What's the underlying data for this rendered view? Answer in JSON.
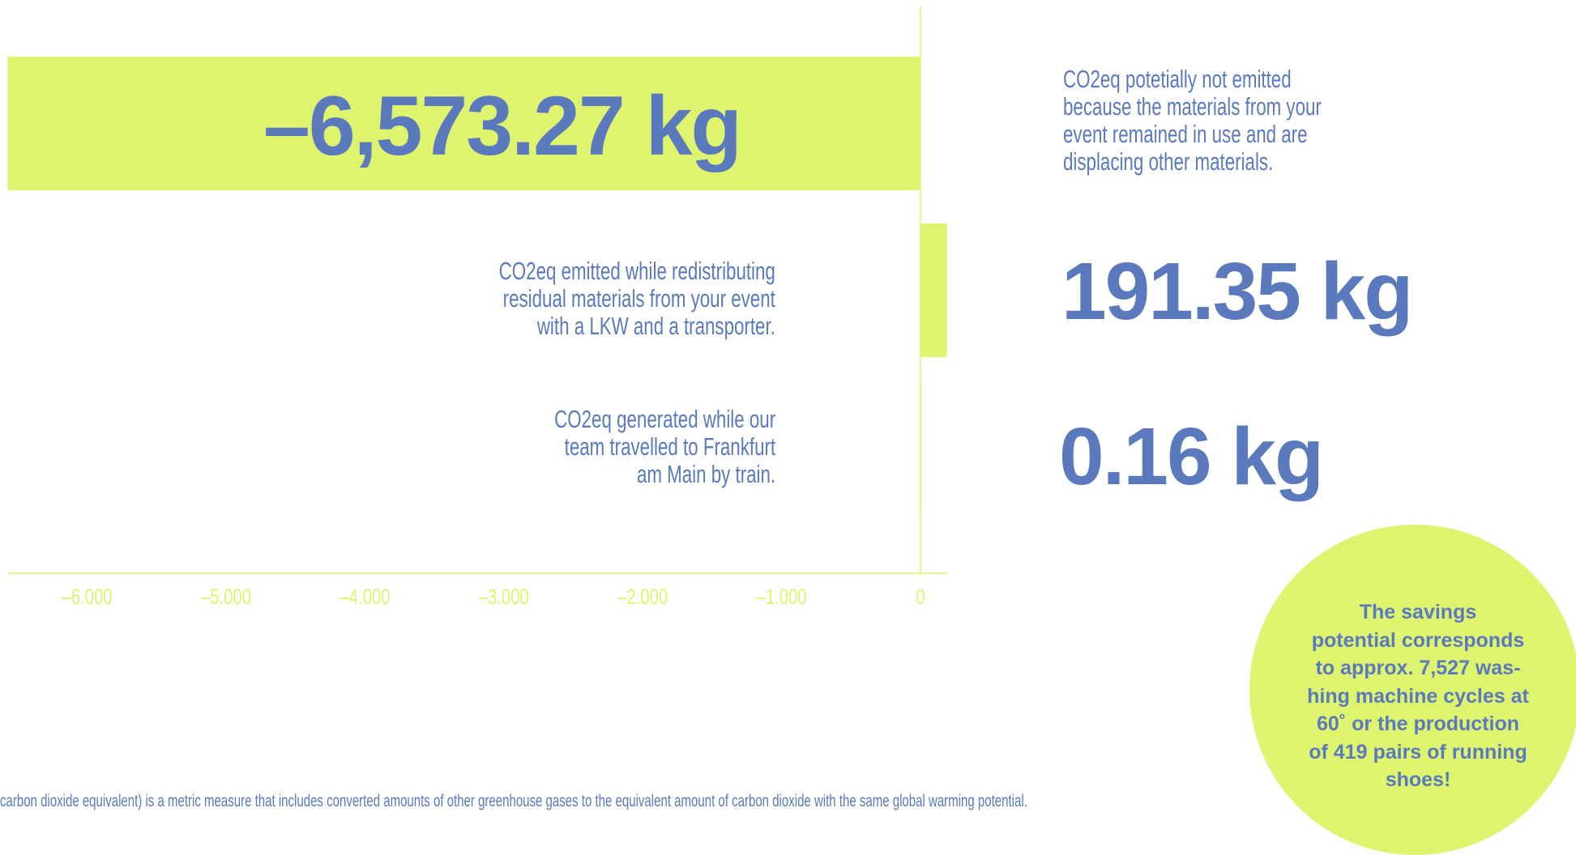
{
  "chart_data": {
    "type": "bar",
    "orientation": "horizontal",
    "series": [
      {
        "value": -6573.27,
        "value_label": "–6,573.27 kg",
        "description": [
          "CO2eq potetially not emitted",
          "because the materials from your",
          "event remained in use and are",
          "displacing other materials."
        ]
      },
      {
        "value": 191.35,
        "value_label": "191.35 kg",
        "description": [
          "CO2eq emitted while redistributing",
          "residual materials from your event",
          "with a LKW and a transporter."
        ]
      },
      {
        "value": 0.16,
        "value_label": "0.16 kg",
        "description": [
          "CO2eq generated while our",
          "team travelled to Frankfurt",
          "am Main by train."
        ]
      }
    ],
    "x_ticks": [
      -6000,
      -5000,
      -4000,
      -3000,
      -2000,
      -1000,
      0
    ],
    "x_tick_labels": [
      "–6.000",
      "–5.000",
      "–4.000",
      "–3.000",
      "–2.000",
      "–1.000",
      "0"
    ],
    "xlim": [
      -6643,
      190
    ],
    "grid": false,
    "colors": {
      "bar": "#def46f",
      "axis": "#def46f",
      "text": "#5b79bd"
    }
  },
  "callout": {
    "text": "The savings potential corresponds to approx. 7,527 was-hing machine cycles at 60˚ or the production of 419 pairs of running shoes!",
    "lines": [
      "The savings",
      "potential corresponds",
      "to approx. 7,527 was-",
      "hing machine cycles at",
      "60˚ or the production",
      "of 419 pairs of running",
      "shoes!"
    ]
  },
  "footnote": "carbon dioxide equivalent) is a metric measure that includes converted amounts of other greenhouse gases to the equivalent amount of carbon dioxide with the same global warming potential."
}
